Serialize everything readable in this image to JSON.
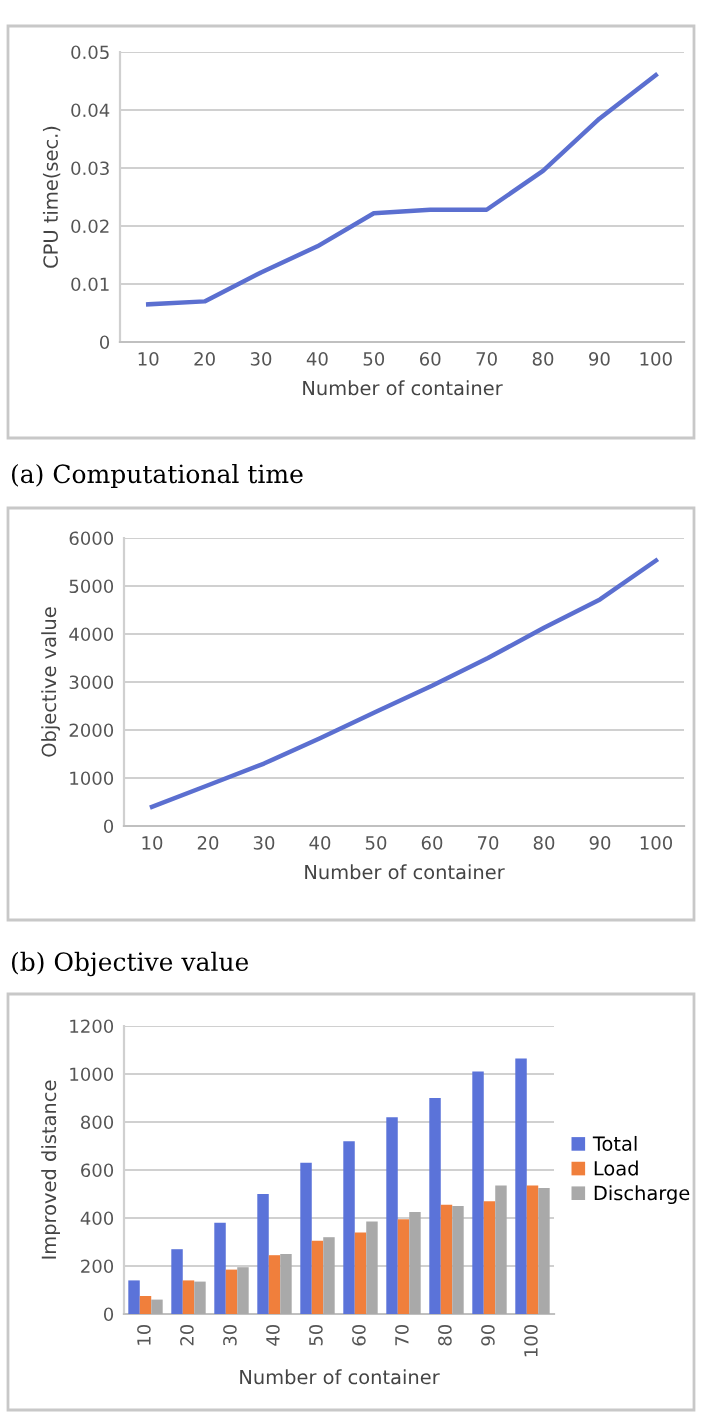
{
  "chart_data": [
    {
      "type": "line",
      "xlabel": "Number of container",
      "ylabel": "CPU time(sec.)",
      "categories": [
        "10",
        "20",
        "30",
        "40",
        "50",
        "60",
        "70",
        "80",
        "90",
        "100"
      ],
      "series": [
        {
          "color": "#5b6fd0",
          "values": [
            0.0065,
            0.007,
            0.012,
            0.0165,
            0.0222,
            0.0228,
            0.0228,
            0.0295,
            0.0385,
            0.046
          ]
        }
      ],
      "ylim": [
        0,
        0.05
      ],
      "yticks": [
        {
          "value": 0,
          "label": "0"
        },
        0.01,
        0.02,
        0.03,
        0.04,
        0.05
      ],
      "grid": "y",
      "legend": false,
      "marker": "none",
      "line_style": "solid",
      "annotations": [
        "(a) Computational time"
      ]
    },
    {
      "type": "line",
      "xlabel": "Number of container",
      "ylabel": "Objective value",
      "categories": [
        "10",
        "20",
        "30",
        "40",
        "50",
        "60",
        "70",
        "80",
        "90",
        "100"
      ],
      "series": [
        {
          "color": "#5b6fd0",
          "values": [
            400,
            850,
            1300,
            1830,
            2380,
            2920,
            3500,
            4130,
            4720,
            5530
          ]
        }
      ],
      "ylim": [
        0,
        6000
      ],
      "yticks": [
        0,
        1000,
        2000,
        3000,
        4000,
        5000,
        6000
      ],
      "grid": "y",
      "legend": false,
      "marker": "none",
      "line_style": "solid",
      "annotations": [
        "(b) Objective value"
      ]
    },
    {
      "type": "bar",
      "xlabel": "Number of container",
      "ylabel": "Improved distance",
      "categories": [
        "10",
        "20",
        "30",
        "40",
        "50",
        "60",
        "70",
        "80",
        "90",
        "100"
      ],
      "series": [
        {
          "name": "Total",
          "color": "#5b73d9",
          "values": [
            140,
            270,
            380,
            500,
            630,
            720,
            820,
            900,
            1010,
            1065
          ]
        },
        {
          "name": "Load",
          "color": "#f07f3c",
          "values": [
            75,
            140,
            185,
            245,
            305,
            340,
            395,
            455,
            470,
            535
          ]
        },
        {
          "name": "Discharge",
          "color": "#a9a9a9",
          "values": [
            60,
            135,
            195,
            250,
            320,
            385,
            425,
            450,
            535,
            525
          ]
        }
      ],
      "ylim": [
        0,
        1200
      ],
      "yticks": [
        0,
        200,
        400,
        600,
        800,
        1000,
        1200
      ],
      "grid": "y",
      "legend": "right"
    }
  ]
}
